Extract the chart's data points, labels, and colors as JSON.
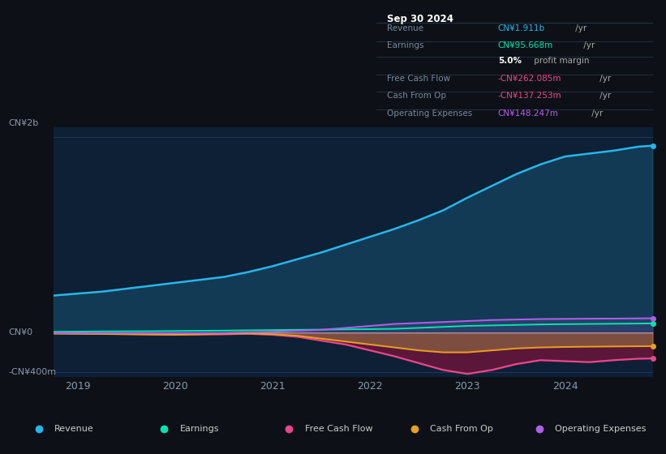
{
  "background_color": "#0d1117",
  "chart_bg_color": "#0d2035",
  "text_color": "#8899aa",
  "ylabel_top": "CN¥2b",
  "ylabel_zero": "CN¥0",
  "ylabel_neg": "-CN¥400m",
  "x_ticks": [
    2019,
    2020,
    2021,
    2022,
    2023,
    2024
  ],
  "ylim": [
    -450000000,
    2100000000
  ],
  "years": [
    2018.75,
    2019.0,
    2019.25,
    2019.5,
    2019.75,
    2020.0,
    2020.25,
    2020.5,
    2020.75,
    2021.0,
    2021.25,
    2021.5,
    2021.75,
    2022.0,
    2022.25,
    2022.5,
    2022.75,
    2023.0,
    2023.25,
    2023.5,
    2023.75,
    2024.0,
    2024.25,
    2024.5,
    2024.75,
    2024.9
  ],
  "revenue": [
    380000000,
    400000000,
    420000000,
    450000000,
    480000000,
    510000000,
    540000000,
    570000000,
    620000000,
    680000000,
    750000000,
    820000000,
    900000000,
    980000000,
    1060000000,
    1150000000,
    1250000000,
    1380000000,
    1500000000,
    1620000000,
    1720000000,
    1800000000,
    1830000000,
    1860000000,
    1900000000,
    1911000000
  ],
  "earnings": [
    10000000,
    12000000,
    14000000,
    15000000,
    16000000,
    18000000,
    20000000,
    22000000,
    25000000,
    27000000,
    30000000,
    32000000,
    35000000,
    37000000,
    40000000,
    50000000,
    60000000,
    70000000,
    75000000,
    80000000,
    85000000,
    88000000,
    90000000,
    92000000,
    94000000,
    95668000
  ],
  "free_cash_flow": [
    -5000000,
    -8000000,
    -10000000,
    -12000000,
    -15000000,
    -20000000,
    -18000000,
    -15000000,
    -10000000,
    -20000000,
    -40000000,
    -80000000,
    -120000000,
    -180000000,
    -240000000,
    -310000000,
    -380000000,
    -420000000,
    -380000000,
    -320000000,
    -280000000,
    -290000000,
    -300000000,
    -280000000,
    -265000000,
    -262085000
  ],
  "cash_from_op": [
    -8000000,
    -10000000,
    -12000000,
    -15000000,
    -18000000,
    -20000000,
    -15000000,
    -10000000,
    -8000000,
    -15000000,
    -30000000,
    -60000000,
    -90000000,
    -120000000,
    -150000000,
    -180000000,
    -200000000,
    -200000000,
    -180000000,
    -160000000,
    -150000000,
    -145000000,
    -142000000,
    -140000000,
    -138000000,
    -137253000
  ],
  "operating_expenses": [
    -2000000,
    -2000000,
    -2000000,
    -2500000,
    -3000000,
    -5000000,
    -3000000,
    -2000000,
    5000000,
    10000000,
    20000000,
    30000000,
    50000000,
    70000000,
    90000000,
    100000000,
    110000000,
    120000000,
    130000000,
    135000000,
    140000000,
    142000000,
    144000000,
    145000000,
    147000000,
    148247000
  ],
  "revenue_color": "#29b5e8",
  "earnings_color": "#00e5b0",
  "free_cash_flow_color": "#e8478b",
  "cash_from_op_color": "#e8a020",
  "operating_expenses_color": "#b060e8",
  "info_box": {
    "date": "Sep 30 2024",
    "rows": [
      {
        "label": "Revenue",
        "value": "CN¥1.911b",
        "value_color": "#29b5e8",
        "suffix": " /yr"
      },
      {
        "label": "Earnings",
        "value": "CN¥95.668m",
        "value_color": "#00e5b0",
        "suffix": " /yr"
      },
      {
        "label": "",
        "value": "5.0%",
        "value_color": "#ffffff",
        "suffix": " profit margin",
        "bold_value": true
      },
      {
        "label": "Free Cash Flow",
        "value": "-CN¥262.085m",
        "value_color": "#e8478b",
        "suffix": " /yr"
      },
      {
        "label": "Cash From Op",
        "value": "-CN¥137.253m",
        "value_color": "#e8478b",
        "suffix": " /yr"
      },
      {
        "label": "Operating Expenses",
        "value": "CN¥148.247m",
        "value_color": "#b060e8",
        "suffix": " /yr"
      }
    ]
  },
  "legend_items": [
    {
      "label": "Revenue",
      "color": "#29b5e8"
    },
    {
      "label": "Earnings",
      "color": "#00e5b0"
    },
    {
      "label": "Free Cash Flow",
      "color": "#e8478b"
    },
    {
      "label": "Cash From Op",
      "color": "#e8a020"
    },
    {
      "label": "Operating Expenses",
      "color": "#b060e8"
    }
  ]
}
